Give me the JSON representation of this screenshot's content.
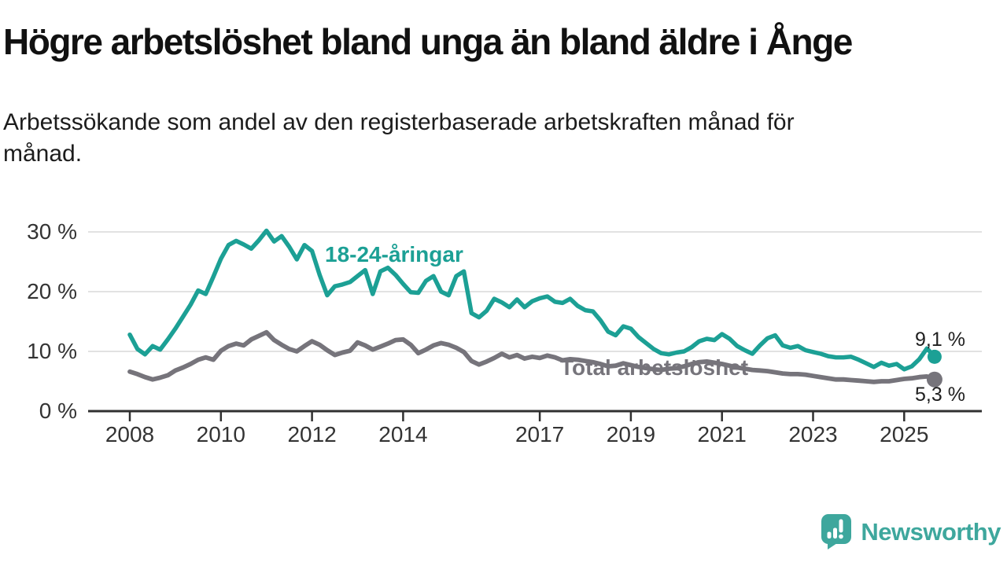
{
  "title": "Högre arbetslöshet bland unga än bland äldre i Ånge",
  "subtitle": {
    "line1": "Arbetssökande som andel av den registerbaserade arbetskraften månad för",
    "line2": "månad."
  },
  "colors": {
    "youth": "#1ca095",
    "total": "#76747B",
    "grid": "#d8d8d8",
    "axis": "#303030",
    "tick_text": "#333333",
    "end_label_text": "#1f1f1f",
    "brand": "#3ea79d"
  },
  "chart_data": {
    "type": "line",
    "x_unit": "decimal_year_bimonthly",
    "x_start": 2008,
    "x_step": 0.16667,
    "xlim": [
      2007.9,
      2026.2
    ],
    "ylim": [
      0,
      32
    ],
    "grid": "horizontal",
    "yticks": [
      0,
      10,
      20,
      30
    ],
    "ytick_labels": [
      "0 %",
      "10 %",
      "20 %",
      "30 %"
    ],
    "xticks": [
      2008,
      2010,
      2012,
      2014,
      2017,
      2019,
      2021,
      2023,
      2025
    ],
    "xtick_labels": [
      "2008",
      "2010",
      "2012",
      "2014",
      "2017",
      "2019",
      "2021",
      "2023",
      "2025"
    ],
    "legend_position": "inline-labels",
    "series": [
      {
        "name": "18-24-åringar",
        "label": "18-24-åringar",
        "end_label": "9,1 %",
        "end_value": 9.1,
        "values": [
          12.8,
          10.4,
          9.5,
          10.9,
          10.3,
          12.0,
          13.8,
          15.8,
          17.8,
          20.2,
          19.6,
          22.5,
          25.5,
          27.8,
          28.5,
          27.9,
          27.2,
          28.6,
          30.2,
          28.4,
          29.3,
          27.5,
          25.4,
          27.8,
          26.8,
          22.8,
          19.4,
          20.9,
          21.2,
          21.6,
          22.6,
          23.6,
          19.6,
          23.4,
          24.0,
          22.8,
          21.3,
          19.9,
          19.8,
          21.8,
          22.6,
          20.0,
          19.4,
          22.6,
          23.4,
          16.4,
          15.7,
          16.8,
          18.8,
          18.2,
          17.4,
          18.7,
          17.4,
          18.4,
          18.9,
          19.2,
          18.3,
          18.1,
          18.8,
          17.6,
          16.9,
          16.7,
          15.2,
          13.3,
          12.7,
          14.2,
          13.8,
          12.4,
          11.4,
          10.4,
          9.7,
          9.5,
          9.8,
          10.0,
          10.7,
          11.7,
          12.1,
          11.9,
          12.9,
          12.1,
          10.9,
          10.2,
          9.6,
          11.0,
          12.2,
          12.7,
          11.0,
          10.6,
          10.9,
          10.2,
          9.9,
          9.6,
          9.2,
          9.0,
          9.0,
          9.1,
          8.6,
          8.0,
          7.4,
          8.1,
          7.6,
          7.9,
          7.0,
          7.5,
          8.7,
          10.5,
          9.1
        ]
      },
      {
        "name": "Total arbetslöshet",
        "label": "Total arbetslöshet",
        "end_label": "5,3 %",
        "end_value": 5.3,
        "values": [
          6.6,
          6.2,
          5.7,
          5.3,
          5.6,
          6.0,
          6.8,
          7.3,
          7.9,
          8.6,
          9.0,
          8.6,
          10.1,
          10.9,
          11.3,
          11.0,
          12.0,
          12.6,
          13.2,
          11.9,
          11.1,
          10.4,
          10.0,
          10.9,
          11.7,
          11.1,
          10.2,
          9.4,
          9.8,
          10.1,
          11.5,
          11.0,
          10.3,
          10.8,
          11.3,
          11.9,
          12.0,
          11.1,
          9.7,
          10.3,
          11.0,
          11.4,
          11.1,
          10.6,
          9.9,
          8.4,
          7.8,
          8.3,
          8.9,
          9.6,
          9.0,
          9.4,
          8.8,
          9.1,
          8.9,
          9.3,
          9.0,
          8.5,
          8.7,
          8.6,
          8.4,
          8.2,
          7.9,
          7.5,
          7.6,
          8.0,
          7.7,
          7.4,
          7.2,
          7.0,
          6.9,
          7.1,
          7.2,
          7.5,
          7.9,
          8.2,
          8.3,
          8.1,
          7.9,
          7.6,
          7.3,
          7.1,
          6.9,
          6.8,
          6.7,
          6.5,
          6.3,
          6.2,
          6.2,
          6.1,
          5.9,
          5.7,
          5.5,
          5.3,
          5.3,
          5.2,
          5.1,
          5.0,
          4.9,
          5.0,
          5.0,
          5.2,
          5.4,
          5.5,
          5.7,
          5.8,
          5.3
        ]
      }
    ]
  },
  "branding": {
    "logo_text": "Newsworthy"
  }
}
